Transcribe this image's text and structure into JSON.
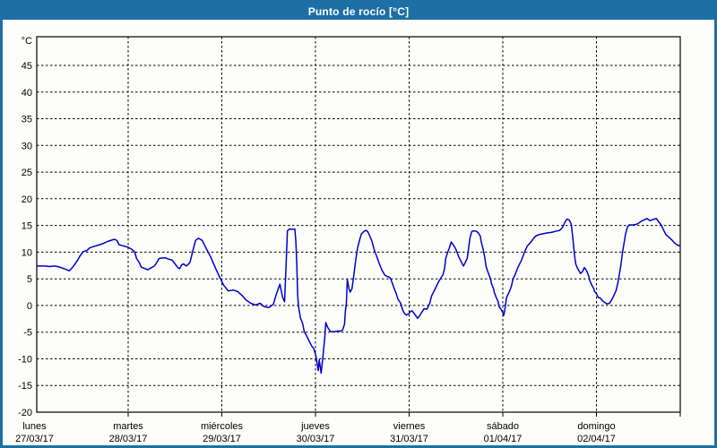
{
  "window": {
    "title": "Punto de rocío [°C]"
  },
  "colors": {
    "accent": "#1d6fa5",
    "line": "#0000cd",
    "grid": "#000000",
    "text": "#000000",
    "plot_background": "#ffffff",
    "title_text": "#ffffff"
  },
  "y_axis": {
    "unit": "°C",
    "min": -20,
    "max": 45,
    "step": 5,
    "ticks": [
      45,
      40,
      35,
      30,
      25,
      20,
      15,
      10,
      5,
      0,
      -5,
      -10,
      -15,
      -20
    ]
  },
  "x_axis": {
    "days": [
      {
        "name": "lunes",
        "date": "27/03/17"
      },
      {
        "name": "martes",
        "date": "28/03/17"
      },
      {
        "name": "miércoles",
        "date": "29/03/17"
      },
      {
        "name": "jueves",
        "date": "30/03/17"
      },
      {
        "name": "viernes",
        "date": "31/03/17"
      },
      {
        "name": "sábado",
        "date": "01/04/17"
      },
      {
        "name": "domingo",
        "date": "02/04/17"
      }
    ]
  },
  "chart_data": {
    "type": "line",
    "title": "Punto de rocío [°C]",
    "ylabel": "°C",
    "ylim": [
      -20,
      45
    ],
    "grid": "dashed",
    "legend": "none",
    "x_unit": "days since lunes 27/03/17 00:00",
    "series": [
      {
        "name": "Punto de rocío",
        "color": "#0000cd",
        "points": [
          [
            0.02,
            7.4
          ],
          [
            0.11,
            7.4
          ],
          [
            0.16,
            7.3
          ],
          [
            0.21,
            7.4
          ],
          [
            0.25,
            7.3
          ],
          [
            0.3,
            7
          ],
          [
            0.37,
            6.5
          ],
          [
            0.4,
            7
          ],
          [
            0.43,
            7.7
          ],
          [
            0.46,
            8.5
          ],
          [
            0.49,
            9.4
          ],
          [
            0.52,
            10.1
          ],
          [
            0.56,
            10.3
          ],
          [
            0.59,
            10.8
          ],
          [
            0.64,
            11.1
          ],
          [
            0.68,
            11.3
          ],
          [
            0.73,
            11.6
          ],
          [
            0.78,
            12
          ],
          [
            0.85,
            12.4
          ],
          [
            0.88,
            12.2
          ],
          [
            0.9,
            11.4
          ],
          [
            0.94,
            11.2
          ],
          [
            1,
            10.9
          ],
          [
            1.04,
            10.5
          ],
          [
            1.07,
            10
          ],
          [
            1.09,
            8.8
          ],
          [
            1.12,
            8
          ],
          [
            1.14,
            7.2
          ],
          [
            1.18,
            6.9
          ],
          [
            1.21,
            6.7
          ],
          [
            1.24,
            7
          ],
          [
            1.28,
            7.4
          ],
          [
            1.31,
            8.2
          ],
          [
            1.33,
            8.8
          ],
          [
            1.37,
            8.9
          ],
          [
            1.4,
            8.9
          ],
          [
            1.43,
            8.7
          ],
          [
            1.47,
            8.5
          ],
          [
            1.5,
            7.8
          ],
          [
            1.53,
            7.1
          ],
          [
            1.55,
            6.9
          ],
          [
            1.57,
            7.6
          ],
          [
            1.59,
            7.8
          ],
          [
            1.62,
            7.4
          ],
          [
            1.64,
            7.7
          ],
          [
            1.66,
            8.1
          ],
          [
            1.69,
            10.2
          ],
          [
            1.72,
            12.2
          ],
          [
            1.75,
            12.6
          ],
          [
            1.79,
            12.2
          ],
          [
            1.83,
            10.8
          ],
          [
            1.88,
            9.1
          ],
          [
            1.93,
            7.1
          ],
          [
            1.98,
            5.2
          ],
          [
            2.02,
            3.8
          ],
          [
            2.07,
            2.7
          ],
          [
            2.12,
            2.9
          ],
          [
            2.17,
            2.6
          ],
          [
            2.22,
            1.8
          ],
          [
            2.26,
            1
          ],
          [
            2.31,
            0.4
          ],
          [
            2.36,
            0.1
          ],
          [
            2.41,
            0.4
          ],
          [
            2.45,
            -0.2
          ],
          [
            2.5,
            -0.4
          ],
          [
            2.55,
            0.2
          ],
          [
            2.58,
            2
          ],
          [
            2.62,
            4
          ],
          [
            2.65,
            1.5
          ],
          [
            2.67,
            0.7
          ],
          [
            2.68,
            5
          ],
          [
            2.7,
            14
          ],
          [
            2.72,
            14.3
          ],
          [
            2.78,
            14.3
          ],
          [
            2.79,
            12
          ],
          [
            2.8,
            8
          ],
          [
            2.81,
            2
          ],
          [
            2.82,
            -0.3
          ],
          [
            2.84,
            -2.4
          ],
          [
            2.86,
            -3.2
          ],
          [
            2.88,
            -4.9
          ],
          [
            2.9,
            -5.5
          ],
          [
            2.93,
            -6.6
          ],
          [
            2.96,
            -7.6
          ],
          [
            2.98,
            -8
          ],
          [
            3,
            -9.1
          ],
          [
            3.01,
            -9.9
          ],
          [
            3.03,
            -12.2
          ],
          [
            3.04,
            -10.2
          ],
          [
            3.06,
            -12.7
          ],
          [
            3.08,
            -9.4
          ],
          [
            3.1,
            -6
          ],
          [
            3.11,
            -3.2
          ],
          [
            3.13,
            -4.1
          ],
          [
            3.16,
            -4.9
          ],
          [
            3.2,
            -4.9
          ],
          [
            3.24,
            -4.8
          ],
          [
            3.27,
            -4.8
          ],
          [
            3.29,
            -4.6
          ],
          [
            3.31,
            -3.5
          ],
          [
            3.32,
            -1
          ],
          [
            3.33,
            0.5
          ],
          [
            3.34,
            4.9
          ],
          [
            3.36,
            3
          ],
          [
            3.37,
            2.5
          ],
          [
            3.39,
            3.2
          ],
          [
            3.41,
            5.7
          ],
          [
            3.43,
            8.5
          ],
          [
            3.45,
            10.8
          ],
          [
            3.47,
            12.2
          ],
          [
            3.49,
            13.4
          ],
          [
            3.52,
            13.9
          ],
          [
            3.54,
            14.1
          ],
          [
            3.56,
            13.8
          ],
          [
            3.58,
            13
          ],
          [
            3.6,
            12.2
          ],
          [
            3.63,
            10.3
          ],
          [
            3.65,
            9.4
          ],
          [
            3.68,
            7.9
          ],
          [
            3.71,
            6.6
          ],
          [
            3.74,
            5.7
          ],
          [
            3.77,
            5.4
          ],
          [
            3.78,
            5.4
          ],
          [
            3.8,
            5.1
          ],
          [
            3.82,
            4.2
          ],
          [
            3.84,
            3.2
          ],
          [
            3.86,
            2.3
          ],
          [
            3.88,
            1.2
          ],
          [
            3.91,
            0.4
          ],
          [
            3.93,
            -0.8
          ],
          [
            3.95,
            -1.5
          ],
          [
            3.97,
            -1.8
          ],
          [
            4,
            -1.5
          ],
          [
            4.01,
            -1.2
          ],
          [
            4.03,
            -1
          ],
          [
            4.05,
            -1.4
          ],
          [
            4.07,
            -1.9
          ],
          [
            4.09,
            -2.4
          ],
          [
            4.11,
            -2
          ],
          [
            4.13,
            -1.4
          ],
          [
            4.16,
            -0.6
          ],
          [
            4.19,
            -0.7
          ],
          [
            4.22,
            0.4
          ],
          [
            4.24,
            1.8
          ],
          [
            4.28,
            3.2
          ],
          [
            4.31,
            4.3
          ],
          [
            4.34,
            5.2
          ],
          [
            4.36,
            5.7
          ],
          [
            4.38,
            7.1
          ],
          [
            4.39,
            8.8
          ],
          [
            4.41,
            9.9
          ],
          [
            4.43,
            10.8
          ],
          [
            4.45,
            11.9
          ],
          [
            4.48,
            11.1
          ],
          [
            4.5,
            10.5
          ],
          [
            4.53,
            9.1
          ],
          [
            4.57,
            7.7
          ],
          [
            4.58,
            7.4
          ],
          [
            4.62,
            8.8
          ],
          [
            4.65,
            12.7
          ],
          [
            4.67,
            13.9
          ],
          [
            4.69,
            14
          ],
          [
            4.72,
            13.9
          ],
          [
            4.74,
            13.6
          ],
          [
            4.76,
            13
          ],
          [
            4.77,
            11.9
          ],
          [
            4.79,
            10.5
          ],
          [
            4.81,
            8.8
          ],
          [
            4.82,
            7.4
          ],
          [
            4.84,
            6.3
          ],
          [
            4.86,
            5.4
          ],
          [
            4.87,
            4.9
          ],
          [
            4.88,
            4
          ],
          [
            4.9,
            3.2
          ],
          [
            4.91,
            2.4
          ],
          [
            4.93,
            1.5
          ],
          [
            4.95,
            0.7
          ],
          [
            4.96,
            -0.2
          ],
          [
            4.98,
            -0.7
          ],
          [
            5,
            -1.3
          ],
          [
            5.01,
            -1.9
          ],
          [
            5.02,
            -1
          ],
          [
            5.04,
            1.5
          ],
          [
            5.07,
            2.6
          ],
          [
            5.09,
            3.5
          ],
          [
            5.11,
            5
          ],
          [
            5.13,
            5.7
          ],
          [
            5.16,
            7.1
          ],
          [
            5.2,
            8.5
          ],
          [
            5.23,
            9.9
          ],
          [
            5.26,
            11.1
          ],
          [
            5.3,
            11.9
          ],
          [
            5.33,
            12.6
          ],
          [
            5.35,
            13
          ],
          [
            5.39,
            13.3
          ],
          [
            5.42,
            13.4
          ],
          [
            5.47,
            13.6
          ],
          [
            5.52,
            13.7
          ],
          [
            5.56,
            13.9
          ],
          [
            5.61,
            14.1
          ],
          [
            5.64,
            14.7
          ],
          [
            5.66,
            15.5
          ],
          [
            5.68,
            16.1
          ],
          [
            5.69,
            16.2
          ],
          [
            5.71,
            16
          ],
          [
            5.73,
            15.3
          ],
          [
            5.74,
            13.9
          ],
          [
            5.75,
            12.2
          ],
          [
            5.76,
            10.5
          ],
          [
            5.77,
            8.8
          ],
          [
            5.78,
            7.7
          ],
          [
            5.8,
            6.9
          ],
          [
            5.82,
            6.3
          ],
          [
            5.83,
            6
          ],
          [
            5.85,
            6.3
          ],
          [
            5.87,
            7.1
          ],
          [
            5.88,
            6.9
          ],
          [
            5.9,
            6.3
          ],
          [
            5.92,
            5.4
          ],
          [
            5.93,
            4.6
          ],
          [
            5.95,
            3.8
          ],
          [
            5.97,
            3.2
          ],
          [
            5.98,
            2.6
          ],
          [
            6,
            2.2
          ],
          [
            6.01,
            1.8
          ],
          [
            6.02,
            1.5
          ],
          [
            6.04,
            1.4
          ],
          [
            6.07,
            0.8
          ],
          [
            6.11,
            0.3
          ],
          [
            6.14,
            0.4
          ],
          [
            6.17,
            1.3
          ],
          [
            6.21,
            2.8
          ],
          [
            6.23,
            4.3
          ],
          [
            6.26,
            7.5
          ],
          [
            6.28,
            10.2
          ],
          [
            6.31,
            13.3
          ],
          [
            6.33,
            14.7
          ],
          [
            6.35,
            15.1
          ],
          [
            6.4,
            15.1
          ],
          [
            6.44,
            15.3
          ],
          [
            6.49,
            15.9
          ],
          [
            6.54,
            16.3
          ],
          [
            6.57,
            15.9
          ],
          [
            6.6,
            16.1
          ],
          [
            6.64,
            16.3
          ],
          [
            6.66,
            15.8
          ],
          [
            6.69,
            15.1
          ],
          [
            6.71,
            14.4
          ],
          [
            6.74,
            13.3
          ],
          [
            6.78,
            12.7
          ],
          [
            6.81,
            12.2
          ],
          [
            6.84,
            11.6
          ],
          [
            6.88,
            11.2
          ],
          [
            6.9,
            11.2
          ]
        ]
      }
    ]
  }
}
